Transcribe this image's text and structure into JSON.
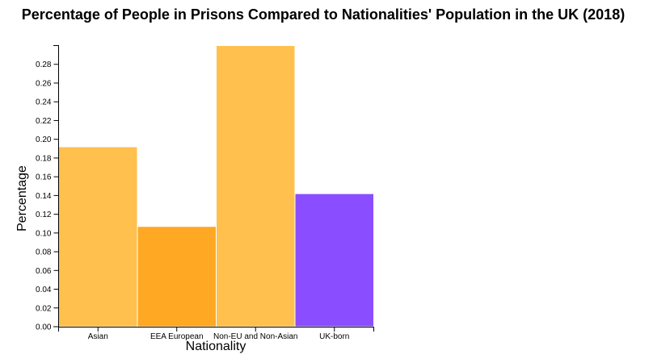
{
  "chart_data": {
    "type": "bar",
    "title": "Percentage of People in Prisons Compared to Nationalities' Population in the UK (2018)",
    "xlabel": "Nationality",
    "ylabel": "Percentage",
    "categories": [
      "Asian",
      "EEA European",
      "Non-EU and Non-Asian",
      "UK-born"
    ],
    "values": [
      0.192,
      0.107,
      0.3,
      0.142
    ],
    "colors": [
      "#FFC04D",
      "#FFA823",
      "#FFC04D",
      "#8A4DFF"
    ],
    "ylim": [
      0,
      0.3
    ],
    "yticks": [
      "0.00",
      "0.02",
      "0.04",
      "0.06",
      "0.08",
      "0.10",
      "0.12",
      "0.14",
      "0.16",
      "0.18",
      "0.20",
      "0.22",
      "0.24",
      "0.26",
      "0.28"
    ],
    "grid": false,
    "legend": "none"
  }
}
